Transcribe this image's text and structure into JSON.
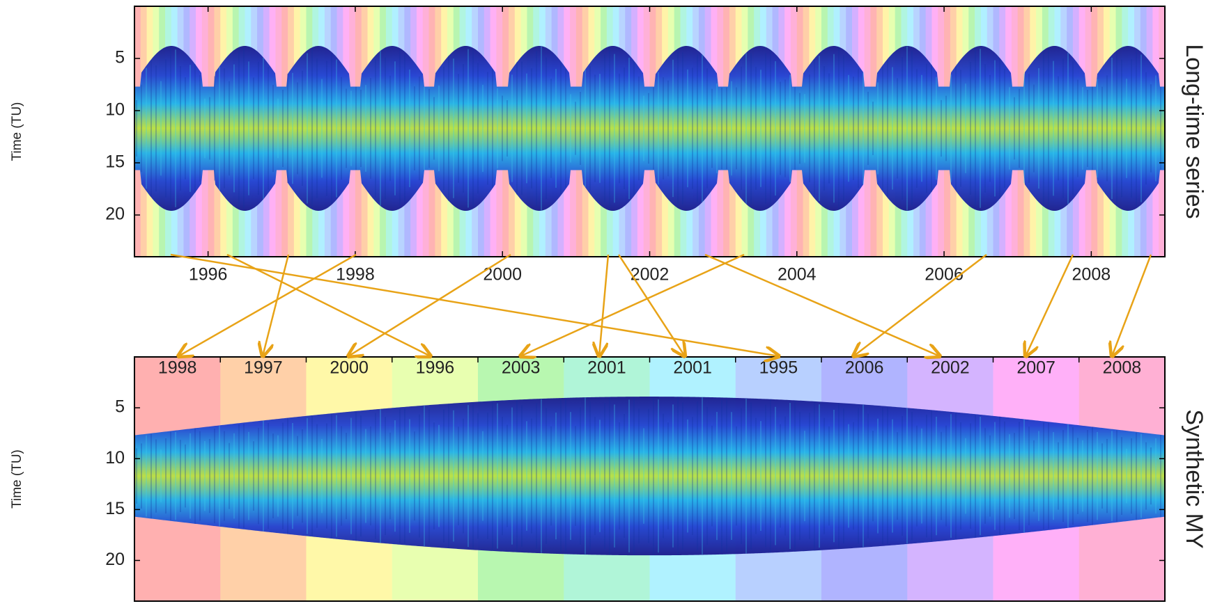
{
  "chart_data": [
    {
      "type": "envelope",
      "title": "Long-time series",
      "ylabel": "Time (TU)",
      "xlim": [
        1995,
        2009
      ],
      "xticks": [
        1996,
        1998,
        2000,
        2002,
        2004,
        2006,
        2008
      ],
      "ylim": [
        0,
        24
      ],
      "yticks": [
        5,
        10,
        15,
        20
      ],
      "band_colors": [
        "#ffb3b3",
        "#ffcfa8",
        "#fff3a8",
        "#e6ffb0",
        "#b8f5b0",
        "#b0f5e0",
        "#b0f0ff",
        "#b8d4ff",
        "#b0b8ff",
        "#d4b0ff",
        "#ffb0f5",
        "#ffb0d8"
      ]
    },
    {
      "type": "envelope",
      "title": "Synthetic MY",
      "ylabel": "Time (TU)",
      "categories": [
        "1998",
        "1997",
        "2000",
        "1996",
        "2003",
        "2001",
        "2001",
        "1995",
        "2006",
        "2002",
        "2007",
        "2008"
      ],
      "colors": [
        "#ffb0b0",
        "#ffd0a8",
        "#fff8a8",
        "#e8ffb0",
        "#b8f7b0",
        "#b0f5d8",
        "#b0f2ff",
        "#b8d0ff",
        "#b0b4ff",
        "#d4b4ff",
        "#ffb0f8",
        "#ffb0d4"
      ],
      "ylim": [
        0,
        24
      ],
      "yticks": [
        5,
        10,
        15,
        20
      ]
    }
  ]
}
